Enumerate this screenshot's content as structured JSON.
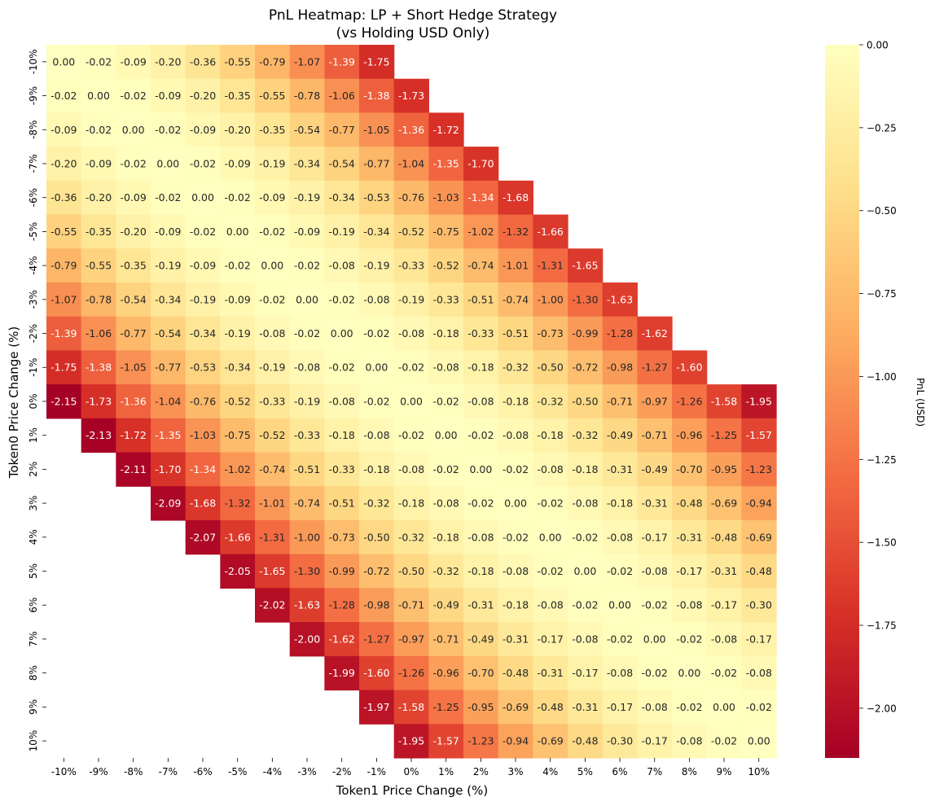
{
  "chart_data": {
    "type": "heatmap",
    "title_lines": [
      "PnL Heatmap: LP + Short Hedge Strategy",
      "(vs Holding USD Only)"
    ],
    "xlabel": "Token1 Price Change (%)",
    "ylabel": "Token0 Price Change (%)",
    "x_categories": [
      "-10%",
      "-9%",
      "-8%",
      "-7%",
      "-6%",
      "-5%",
      "-4%",
      "-3%",
      "-2%",
      "-1%",
      "0%",
      "1%",
      "2%",
      "3%",
      "4%",
      "5%",
      "6%",
      "7%",
      "8%",
      "9%",
      "10%"
    ],
    "y_categories": [
      "-10%",
      "-9%",
      "-8%",
      "-7%",
      "-6%",
      "-5%",
      "-4%",
      "-3%",
      "-2%",
      "-1%",
      "0%",
      "1%",
      "2%",
      "3%",
      "4%",
      "5%",
      "6%",
      "7%",
      "8%",
      "9%",
      "10%"
    ],
    "values": [
      [
        0.0,
        -0.02,
        -0.09,
        -0.2,
        -0.36,
        -0.55,
        -0.79,
        -1.07,
        -1.39,
        -1.75,
        null,
        null,
        null,
        null,
        null,
        null,
        null,
        null,
        null,
        null,
        null
      ],
      [
        -0.02,
        0.0,
        -0.02,
        -0.09,
        -0.2,
        -0.35,
        -0.55,
        -0.78,
        -1.06,
        -1.38,
        -1.73,
        null,
        null,
        null,
        null,
        null,
        null,
        null,
        null,
        null,
        null
      ],
      [
        -0.09,
        -0.02,
        0.0,
        -0.02,
        -0.09,
        -0.2,
        -0.35,
        -0.54,
        -0.77,
        -1.05,
        -1.36,
        -1.72,
        null,
        null,
        null,
        null,
        null,
        null,
        null,
        null,
        null
      ],
      [
        -0.2,
        -0.09,
        -0.02,
        0.0,
        -0.02,
        -0.09,
        -0.19,
        -0.34,
        -0.54,
        -0.77,
        -1.04,
        -1.35,
        -1.7,
        null,
        null,
        null,
        null,
        null,
        null,
        null,
        null
      ],
      [
        -0.36,
        -0.2,
        -0.09,
        -0.02,
        0.0,
        -0.02,
        -0.09,
        -0.19,
        -0.34,
        -0.53,
        -0.76,
        -1.03,
        -1.34,
        -1.68,
        null,
        null,
        null,
        null,
        null,
        null,
        null
      ],
      [
        -0.55,
        -0.35,
        -0.2,
        -0.09,
        -0.02,
        0.0,
        -0.02,
        -0.09,
        -0.19,
        -0.34,
        -0.52,
        -0.75,
        -1.02,
        -1.32,
        -1.66,
        null,
        null,
        null,
        null,
        null,
        null
      ],
      [
        -0.79,
        -0.55,
        -0.35,
        -0.19,
        -0.09,
        -0.02,
        0.0,
        -0.02,
        -0.08,
        -0.19,
        -0.33,
        -0.52,
        -0.74,
        -1.01,
        -1.31,
        -1.65,
        null,
        null,
        null,
        null,
        null
      ],
      [
        -1.07,
        -0.78,
        -0.54,
        -0.34,
        -0.19,
        -0.09,
        -0.02,
        0.0,
        -0.02,
        -0.08,
        -0.19,
        -0.33,
        -0.51,
        -0.74,
        -1.0,
        -1.3,
        -1.63,
        null,
        null,
        null,
        null
      ],
      [
        -1.39,
        -1.06,
        -0.77,
        -0.54,
        -0.34,
        -0.19,
        -0.08,
        -0.02,
        0.0,
        -0.02,
        -0.08,
        -0.18,
        -0.33,
        -0.51,
        -0.73,
        -0.99,
        -1.28,
        -1.62,
        null,
        null,
        null
      ],
      [
        -1.75,
        -1.38,
        -1.05,
        -0.77,
        -0.53,
        -0.34,
        -0.19,
        -0.08,
        -0.02,
        0.0,
        -0.02,
        -0.08,
        -0.18,
        -0.32,
        -0.5,
        -0.72,
        -0.98,
        -1.27,
        -1.6,
        null,
        null
      ],
      [
        -2.15,
        -1.73,
        -1.36,
        -1.04,
        -0.76,
        -0.52,
        -0.33,
        -0.19,
        -0.08,
        -0.02,
        0.0,
        -0.02,
        -0.08,
        -0.18,
        -0.32,
        -0.5,
        -0.71,
        -0.97,
        -1.26,
        -1.58,
        -1.95
      ],
      [
        null,
        -2.13,
        -1.72,
        -1.35,
        -1.03,
        -0.75,
        -0.52,
        -0.33,
        -0.18,
        -0.08,
        -0.02,
        0.0,
        -0.02,
        -0.08,
        -0.18,
        -0.32,
        -0.49,
        -0.71,
        -0.96,
        -1.25,
        -1.57
      ],
      [
        null,
        null,
        -2.11,
        -1.7,
        -1.34,
        -1.02,
        -0.74,
        -0.51,
        -0.33,
        -0.18,
        -0.08,
        -0.02,
        0.0,
        -0.02,
        -0.08,
        -0.18,
        -0.31,
        -0.49,
        -0.7,
        -0.95,
        -1.23
      ],
      [
        null,
        null,
        null,
        -2.09,
        -1.68,
        -1.32,
        -1.01,
        -0.74,
        -0.51,
        -0.32,
        -0.18,
        -0.08,
        -0.02,
        0.0,
        -0.02,
        -0.08,
        -0.18,
        -0.31,
        -0.48,
        -0.69,
        -0.94
      ],
      [
        null,
        null,
        null,
        null,
        -2.07,
        -1.66,
        -1.31,
        -1.0,
        -0.73,
        -0.5,
        -0.32,
        -0.18,
        -0.08,
        -0.02,
        0.0,
        -0.02,
        -0.08,
        -0.17,
        -0.31,
        -0.48,
        -0.69
      ],
      [
        null,
        null,
        null,
        null,
        null,
        -2.05,
        -1.65,
        -1.3,
        -0.99,
        -0.72,
        -0.5,
        -0.32,
        -0.18,
        -0.08,
        -0.02,
        0.0,
        -0.02,
        -0.08,
        -0.17,
        -0.31,
        -0.48
      ],
      [
        null,
        null,
        null,
        null,
        null,
        null,
        -2.02,
        -1.63,
        -1.28,
        -0.98,
        -0.71,
        -0.49,
        -0.31,
        -0.18,
        -0.08,
        -0.02,
        0.0,
        -0.02,
        -0.08,
        -0.17,
        -0.3
      ],
      [
        null,
        null,
        null,
        null,
        null,
        null,
        null,
        -2.0,
        -1.62,
        -1.27,
        -0.97,
        -0.71,
        -0.49,
        -0.31,
        -0.17,
        -0.08,
        -0.02,
        0.0,
        -0.02,
        -0.08,
        -0.17
      ],
      [
        null,
        null,
        null,
        null,
        null,
        null,
        null,
        null,
        -1.99,
        -1.6,
        -1.26,
        -0.96,
        -0.7,
        -0.48,
        -0.31,
        -0.17,
        -0.08,
        -0.02,
        0.0,
        -0.02,
        -0.08
      ],
      [
        null,
        null,
        null,
        null,
        null,
        null,
        null,
        null,
        null,
        -1.97,
        -1.58,
        -1.25,
        -0.95,
        -0.69,
        -0.48,
        -0.31,
        -0.17,
        -0.08,
        -0.02,
        0.0,
        -0.02
      ],
      [
        null,
        null,
        null,
        null,
        null,
        null,
        null,
        null,
        null,
        null,
        -1.95,
        -1.57,
        -1.23,
        -0.94,
        -0.69,
        -0.48,
        -0.3,
        -0.17,
        -0.08,
        -0.02,
        0.0
      ]
    ],
    "value_format_decimals": 2,
    "colormap": "RdYlGn-like (red-yellow)",
    "color_stops": [
      "#a50026",
      "#d73027",
      "#f46d43",
      "#fdae61",
      "#fee08b",
      "#ffffbf"
    ],
    "vmin": -2.15,
    "vmax": 0.0,
    "colorbar": {
      "label": "PnL (USD)",
      "ticks": [
        0.0,
        -0.25,
        -0.5,
        -0.75,
        -1.0,
        -1.25,
        -1.5,
        -1.75,
        -2.0
      ],
      "tick_labels": [
        "0.00",
        "−0.25",
        "−0.50",
        "−0.75",
        "−1.00",
        "−1.25",
        "−1.50",
        "−1.75",
        "−2.00"
      ]
    }
  }
}
